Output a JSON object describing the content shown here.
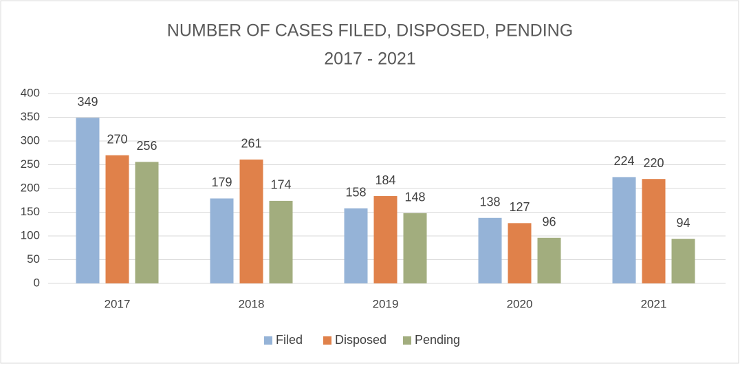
{
  "chart_data": {
    "type": "bar",
    "title": "NUMBER OF CASES FILED, DISPOSED, PENDING",
    "subtitle": "2017 - 2021",
    "categories": [
      "2017",
      "2018",
      "2019",
      "2020",
      "2021"
    ],
    "series": [
      {
        "name": "Filed",
        "color": "#95b3d7",
        "values": [
          349,
          179,
          158,
          138,
          224
        ]
      },
      {
        "name": "Disposed",
        "color": "#e0814a",
        "values": [
          270,
          261,
          184,
          127,
          220
        ]
      },
      {
        "name": "Pending",
        "color": "#a2ad7e",
        "values": [
          256,
          174,
          148,
          96,
          94
        ]
      }
    ],
    "ylim": [
      0,
      400
    ],
    "yticks": [
      0,
      50,
      100,
      150,
      200,
      250,
      300,
      350,
      400
    ],
    "grid": true,
    "legend": "bottom"
  }
}
